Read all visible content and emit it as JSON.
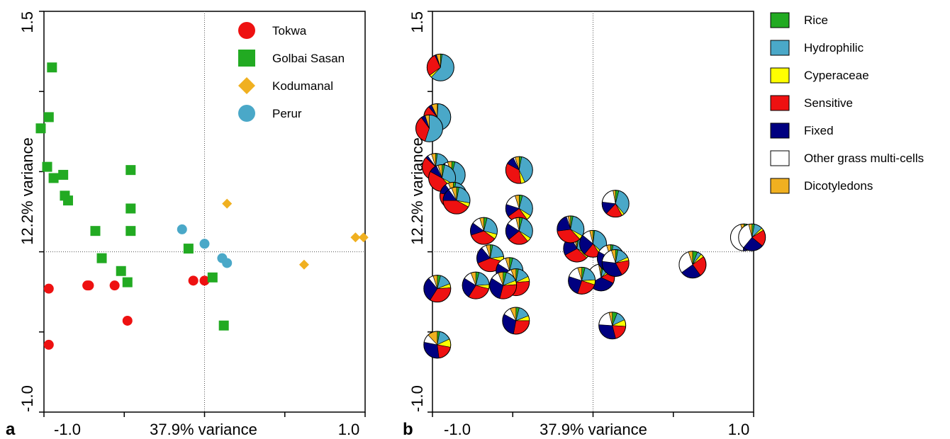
{
  "panel_a": {
    "label": "a",
    "chart_data": {
      "type": "scatter",
      "xlabel": "37.9% variance",
      "ylabel": "12.2% variance",
      "xlim": [
        -1.0,
        1.0
      ],
      "ylim": [
        -1.0,
        1.5
      ],
      "x_tick_labels": [
        "-1.0",
        "1.0"
      ],
      "y_tick_labels": [
        "-1.0",
        "1.5"
      ],
      "reference_lines": {
        "x": 0,
        "y": 0
      },
      "legend_position": "top-right",
      "series": [
        {
          "name": "Tokwa",
          "marker": "circle",
          "color": "#ee1111",
          "points": [
            [
              -0.97,
              -0.23
            ],
            [
              -0.73,
              -0.21
            ],
            [
              -0.72,
              -0.21
            ],
            [
              -0.56,
              -0.21
            ],
            [
              -0.48,
              -0.43
            ],
            [
              -0.97,
              -0.58
            ],
            [
              -0.07,
              -0.18
            ],
            [
              0.0,
              -0.18
            ]
          ]
        },
        {
          "name": "Golbai Sasan",
          "marker": "square",
          "color": "#22aa22",
          "points": [
            [
              -0.95,
              1.15
            ],
            [
              -0.97,
              0.84
            ],
            [
              -1.02,
              0.77
            ],
            [
              -0.98,
              0.53
            ],
            [
              -0.88,
              0.48
            ],
            [
              -0.94,
              0.46
            ],
            [
              -0.87,
              0.35
            ],
            [
              -0.85,
              0.32
            ],
            [
              -0.68,
              0.13
            ],
            [
              -0.46,
              0.51
            ],
            [
              -0.46,
              0.27
            ],
            [
              -0.46,
              0.13
            ],
            [
              -0.64,
              -0.04
            ],
            [
              -0.52,
              -0.12
            ],
            [
              -0.48,
              -0.19
            ],
            [
              -0.1,
              0.02
            ],
            [
              0.05,
              -0.16
            ],
            [
              0.12,
              -0.46
            ]
          ]
        },
        {
          "name": "Kodumanal",
          "marker": "diamond",
          "color": "#f0b020",
          "points": [
            [
              0.14,
              0.3
            ],
            [
              0.94,
              0.09
            ],
            [
              0.99,
              0.09
            ],
            [
              0.62,
              -0.08
            ]
          ]
        },
        {
          "name": "Perur",
          "marker": "circle",
          "color": "#4aa8c8",
          "points": [
            [
              -0.14,
              0.14
            ],
            [
              0.0,
              0.05
            ],
            [
              0.11,
              -0.04
            ],
            [
              0.14,
              -0.07
            ]
          ]
        }
      ]
    }
  },
  "panel_b": {
    "label": "b",
    "chart_data": {
      "type": "scatter",
      "marker": "pie",
      "xlabel": "37.9% variance",
      "ylabel": "12.2% variance",
      "xlim": [
        -1.0,
        1.0
      ],
      "ylim": [
        -1.0,
        1.5
      ],
      "x_tick_labels": [
        "-1.0",
        "1.0"
      ],
      "y_tick_labels": [
        "-1.0",
        "1.5"
      ],
      "reference_lines": {
        "x": 0,
        "y": 0
      },
      "categories": [
        "Rice",
        "Hydrophilic",
        "Cyperaceae",
        "Sensitive",
        "Fixed",
        "Other grass multi-cells",
        "Dicotyledons"
      ],
      "colors": [
        "#22aa22",
        "#4aa8c8",
        "#ffff00",
        "#ee1111",
        "#000080",
        "#ffffff",
        "#f0b020"
      ],
      "pies": [
        {
          "x": -0.95,
          "y": 1.15,
          "values": [
            2,
            60,
            3,
            28,
            2,
            0,
            5
          ]
        },
        {
          "x": -0.97,
          "y": 0.84,
          "values": [
            1,
            62,
            4,
            22,
            4,
            0,
            7
          ]
        },
        {
          "x": -1.02,
          "y": 0.77,
          "values": [
            0,
            55,
            0,
            35,
            5,
            0,
            5
          ]
        },
        {
          "x": -0.98,
          "y": 0.53,
          "values": [
            2,
            50,
            5,
            30,
            3,
            5,
            5
          ]
        },
        {
          "x": -0.88,
          "y": 0.48,
          "values": [
            4,
            45,
            6,
            32,
            4,
            4,
            5
          ]
        },
        {
          "x": -0.94,
          "y": 0.46,
          "values": [
            3,
            30,
            5,
            45,
            10,
            2,
            5
          ]
        },
        {
          "x": -0.87,
          "y": 0.35,
          "values": [
            3,
            30,
            5,
            40,
            12,
            4,
            6
          ]
        },
        {
          "x": -0.85,
          "y": 0.32,
          "values": [
            3,
            25,
            5,
            42,
            15,
            4,
            6
          ]
        },
        {
          "x": -0.68,
          "y": 0.13,
          "values": [
            4,
            25,
            6,
            35,
            15,
            10,
            5
          ]
        },
        {
          "x": -0.46,
          "y": 0.51,
          "values": [
            3,
            40,
            5,
            35,
            10,
            2,
            5
          ]
        },
        {
          "x": -0.46,
          "y": 0.27,
          "values": [
            4,
            30,
            6,
            25,
            15,
            15,
            5
          ]
        },
        {
          "x": -0.46,
          "y": 0.13,
          "values": [
            4,
            30,
            5,
            25,
            20,
            12,
            4
          ]
        },
        {
          "x": -0.64,
          "y": -0.04,
          "values": [
            3,
            20,
            6,
            40,
            20,
            6,
            5
          ]
        },
        {
          "x": -0.52,
          "y": -0.12,
          "values": [
            4,
            20,
            5,
            30,
            25,
            11,
            5
          ]
        },
        {
          "x": -0.48,
          "y": -0.19,
          "values": [
            3,
            15,
            6,
            35,
            25,
            10,
            6
          ]
        },
        {
          "x": -0.1,
          "y": 0.02,
          "values": [
            3,
            30,
            4,
            30,
            25,
            4,
            4
          ]
        },
        {
          "x": 0.05,
          "y": -0.16,
          "values": [
            3,
            10,
            4,
            15,
            35,
            30,
            3
          ]
        },
        {
          "x": 0.12,
          "y": -0.46,
          "values": [
            6,
            12,
            8,
            20,
            30,
            20,
            4
          ]
        },
        {
          "x": -0.07,
          "y": -0.18,
          "values": [
            4,
            20,
            6,
            25,
            25,
            15,
            5
          ]
        },
        {
          "x": -0.97,
          "y": -0.23,
          "values": [
            4,
            15,
            5,
            35,
            30,
            6,
            5
          ]
        },
        {
          "x": -0.73,
          "y": -0.21,
          "values": [
            4,
            20,
            5,
            30,
            25,
            10,
            6
          ]
        },
        {
          "x": -0.56,
          "y": -0.21,
          "values": [
            4,
            15,
            5,
            30,
            30,
            10,
            6
          ]
        },
        {
          "x": -0.48,
          "y": -0.43,
          "values": [
            4,
            15,
            6,
            28,
            30,
            10,
            7
          ]
        },
        {
          "x": -0.97,
          "y": -0.58,
          "values": [
            3,
            15,
            10,
            20,
            30,
            10,
            12
          ]
        },
        {
          "x": -0.14,
          "y": 0.14,
          "values": [
            3,
            30,
            5,
            35,
            22,
            2,
            3
          ]
        },
        {
          "x": 0.0,
          "y": 0.05,
          "values": [
            2,
            35,
            4,
            20,
            25,
            10,
            4
          ]
        },
        {
          "x": 0.11,
          "y": -0.04,
          "values": [
            3,
            20,
            5,
            25,
            30,
            12,
            5
          ]
        },
        {
          "x": 0.14,
          "y": -0.07,
          "values": [
            3,
            15,
            4,
            20,
            35,
            18,
            5
          ]
        },
        {
          "x": 0.14,
          "y": 0.3,
          "values": [
            4,
            35,
            3,
            20,
            15,
            20,
            3
          ]
        },
        {
          "x": 0.94,
          "y": 0.09,
          "values": [
            3,
            10,
            3,
            15,
            20,
            45,
            4
          ]
        },
        {
          "x": 0.99,
          "y": 0.09,
          "values": [
            3,
            10,
            3,
            20,
            25,
            35,
            4
          ]
        },
        {
          "x": 0.62,
          "y": -0.08,
          "values": [
            6,
            5,
            4,
            25,
            25,
            30,
            5
          ]
        }
      ]
    }
  },
  "legend_b": {
    "position": "right",
    "items": [
      {
        "label": "Rice",
        "color": "#22aa22"
      },
      {
        "label": "Hydrophilic",
        "color": "#4aa8c8"
      },
      {
        "label": "Cyperaceae",
        "color": "#ffff00"
      },
      {
        "label": "Sensitive",
        "color": "#ee1111"
      },
      {
        "label": "Fixed",
        "color": "#000080"
      },
      {
        "label": "Other grass multi-cells",
        "color": "#ffffff"
      },
      {
        "label": "Dicotyledons",
        "color": "#f0b020"
      }
    ]
  }
}
